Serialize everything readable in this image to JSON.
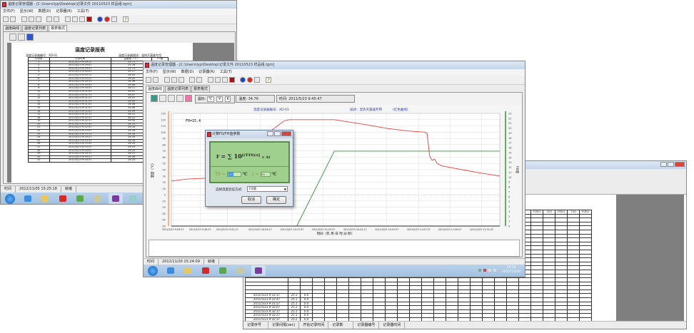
{
  "window_report": {
    "title": "温度记录管理器 - [C:\\Users\\lyp\\Desktop\\记录文件 20110523 样品组.tgm]",
    "menu": [
      "文件(F)",
      "显示(W)",
      "数据(D)",
      "记录器(R)",
      "工具(T)"
    ],
    "tabs": [
      "温度曲线",
      "温度记录列表",
      "报表格式"
    ],
    "active_tab": 2,
    "report": {
      "title": "温度记录报表",
      "recorder_id": "温度记录器编号：XD-01",
      "recorder_desc": "温度记录器描述：湿热灭菌器专用",
      "columns": [
        "记录数",
        "记录时间",
        "温度值（℃）",
        "F0值"
      ],
      "rows": [
        [
          "1",
          "2011/5/23 9:29:37",
          "25.71",
          ""
        ],
        [
          "2",
          "2011/5/23 9:29:47",
          "25.76",
          ""
        ],
        [
          "3",
          "2011/5/23 9:29:57",
          "25.73",
          ""
        ],
        [
          "4",
          "2011/5/23 9:30:07",
          "25.17",
          ""
        ],
        [
          "5",
          "2011/5/23 9:30:17",
          "26.05",
          ""
        ],
        [
          "6",
          "2011/5/23 9:30:27",
          "26.05",
          ""
        ],
        [
          "7",
          "2011/5/23 9:30:37",
          "26.36",
          ""
        ],
        [
          "8",
          "2011/5/23 9:30:47",
          "26.08",
          ""
        ],
        [
          "9",
          "2011/5/23 9:30:57",
          "26.11",
          ""
        ],
        [
          "10",
          "2011/5/23 9:31:07",
          "26.01",
          ""
        ],
        [
          "11",
          "2011/5/23 9:31:17",
          "26.07",
          ""
        ],
        [
          "12",
          "2011/5/23 9:31:27",
          "26.01",
          ""
        ],
        [
          "13",
          "2011/5/23 9:31:37",
          "26.05",
          ""
        ],
        [
          "14",
          "2011/5/23 9:31:47",
          "26.06",
          ""
        ],
        [
          "15",
          "2011/5/23 9:31:57",
          "26.06",
          ""
        ],
        [
          "16",
          "2011/5/23 9:32:07",
          "26.09",
          ""
        ],
        [
          "17",
          "2011/5/23 9:32:17",
          "26.12",
          ""
        ],
        [
          "18",
          "2011/5/23 9:32:27",
          "26.12",
          ""
        ],
        [
          "19",
          "2011/5/23 9:32:37",
          "26.16",
          ""
        ],
        [
          "20",
          "2011/5/23 9:32:47",
          "26.15",
          ""
        ],
        [
          "21",
          "2011/5/23 9:32:57",
          "26.16",
          ""
        ],
        [
          "22",
          "2011/5/23 9:33:07",
          "26.16",
          ""
        ],
        [
          "23",
          "2011/5/23 9:33:17",
          "26.18",
          ""
        ],
        [
          "24",
          "2011/5/23 9:33:27",
          "26.16",
          ""
        ],
        [
          "25",
          "2011/5/23 9:33:37",
          "26.18",
          ""
        ],
        [
          "26",
          "2011/5/23 9:33:47",
          "26.18",
          ""
        ],
        [
          "27",
          "2011/5/23 9:33:57",
          "26.19",
          ""
        ],
        [
          "28",
          "2011/5/23 9:34:07",
          "26.20",
          ""
        ],
        [
          "29",
          "2011/5/23 9:34:17",
          "26.21",
          ""
        ],
        [
          "30",
          "2011/5/23 9:34:27",
          "26.26",
          ""
        ],
        [
          "31",
          "2011/5/23 9:34:37",
          "26.24",
          ""
        ]
      ]
    },
    "status": [
      "时间",
      "2012/11/05 15:25:18",
      "就绪"
    ]
  },
  "window_chart": {
    "title": "温度记录管理器 - [C:\\Users\\lyp\\Desktop\\记录文件 20110523 样品组.tgm]",
    "menu": [
      "文件(F)",
      "显示(W)",
      "数据(D)",
      "记录器(R)",
      "工具(T)"
    ],
    "tabs": [
      "温度曲线",
      "温度记录列表",
      "报表格式"
    ],
    "active_tab": 0,
    "unit_label": "温标:",
    "units": [
      "℃",
      "℉",
      "K"
    ],
    "temp_label": "温度:",
    "temp_value": "34.76",
    "time_label": "时间:",
    "time_value": "2011/5/23 9:45:47",
    "status": [
      "时间",
      "2012/11/20 15:24:09",
      "就绪"
    ],
    "clock_time": "15:24",
    "clock_date": "2012/11/20"
  },
  "chart_data": {
    "type": "line",
    "header": [
      "温度记录器编号：XD-01",
      "描述：湿热灭菌器专用",
      "(红色曲线)"
    ],
    "annotation": "F0=15.4",
    "xlabel": "时间（年-月-日 时:分:秒）",
    "ylabel": "温度（℃）",
    "y2label": "F0值",
    "ylim": [
      -50,
      130
    ],
    "y2lim": [
      0,
      23
    ],
    "xlim": [
      "2011/5/23 9:29:00",
      "2011/5/23 11:40:00"
    ],
    "grid": true,
    "x_ticks": [
      "2011/5/23 9:29:37",
      "2011/5/23 9:40:27",
      "2011/5/23 9:51:17",
      "2011/5/23 10:04:27",
      "2011/5/23 10:17:07",
      "2011/5/23 10:29:37",
      "2011/5/23 10:42:17",
      "2011/5/23 10:54:57",
      "2011/5/23 11:07:37",
      "2011/5/23 11:20:07",
      "2011/5/23 11:32:47"
    ],
    "y_ticks": [
      130,
      120,
      110,
      100,
      90,
      80,
      70,
      60,
      50,
      40,
      30,
      20,
      10,
      0,
      -10,
      -20,
      -30,
      -40,
      -50
    ],
    "y2_ticks": [
      23,
      22,
      21,
      20,
      19,
      18,
      17,
      16,
      15,
      14,
      13,
      12,
      11,
      10,
      9,
      8,
      7,
      6,
      5,
      4,
      3,
      2,
      1,
      0
    ],
    "series": [
      {
        "axis": "left",
        "color": "#e8413c",
        "points": [
          [
            "9:29:00",
            22
          ],
          [
            "9:35:00",
            25
          ],
          [
            "9:45:00",
            27
          ],
          [
            "9:52:00",
            30
          ],
          [
            "10:00:00",
            60
          ],
          [
            "10:08:00",
            100
          ],
          [
            "10:14:00",
            118
          ],
          [
            "10:16:00",
            120
          ],
          [
            "10:34:00",
            120
          ],
          [
            "10:45:00",
            113
          ],
          [
            "10:55:00",
            106
          ],
          [
            "11:03:00",
            102
          ],
          [
            "11:10:00",
            100
          ],
          [
            "11:11:00",
            98
          ],
          [
            "11:12:00",
            62
          ],
          [
            "11:13:00",
            55
          ],
          [
            "11:14:00",
            57
          ],
          [
            "11:15:00",
            50
          ],
          [
            "11:17:00",
            46
          ],
          [
            "11:25:00",
            40
          ],
          [
            "11:32:00",
            35
          ],
          [
            "11:40:00",
            30
          ]
        ]
      },
      {
        "axis": "right",
        "color": "#2e9a3a",
        "points": [
          [
            "10:19:00",
            0
          ],
          [
            "10:34:00",
            15.3
          ],
          [
            "11:40:00",
            15.3
          ]
        ]
      }
    ]
  },
  "dialog": {
    "title": "计算F0/FH值参数",
    "formula_lhs": "F",
    "formula_body": "= ∑ 10",
    "formula_exp": "[(T-T0)/z]",
    "formula_tail": "× Δt",
    "t0_label": "T0 =",
    "t0_value": "121",
    "z_label": "z =",
    "z_value": "10",
    "unit": "℃",
    "method_label": "选择温度验证方式:",
    "method_value": "F0值",
    "cancel": "取消",
    "ok": "确定"
  },
  "window_list": {
    "visible_headers": [
      "F0(s)",
      "T(s)",
      "F0(s)",
      "T(s)",
      "F0(s)"
    ],
    "rows": [
      [
        "2011/5/23 9:31:37",
        "25.1",
        "0.0"
      ],
      [
        "2011/5/23 9:31:47",
        "25.1",
        "0.0"
      ],
      [
        "2011/5/23 9:31:57",
        "25.1",
        "0.0"
      ],
      [
        "2011/5/23 9:32:07",
        "25.1",
        "0.0"
      ],
      [
        "2011/5/23 9:32:17",
        "25.1",
        "0.0"
      ],
      [
        "2011/5/23 9:32:27",
        "25.1",
        "0.0"
      ],
      [
        "2011/5/23 9:32:37",
        "25.2",
        "0.0"
      ],
      [
        "2011/5/23 9:32:47",
        "25.2",
        "0.0"
      ],
      [
        "2011/5/23 9:32:57",
        "25.2",
        "0.0"
      ],
      [
        "2011/5/23 9:33:07",
        "25.2",
        "0.0"
      ]
    ],
    "status": [
      "记录序号",
      "记录间隔(sec)",
      "开始记录时间",
      "记录数",
      "记录器编号",
      "记录器时间"
    ]
  }
}
